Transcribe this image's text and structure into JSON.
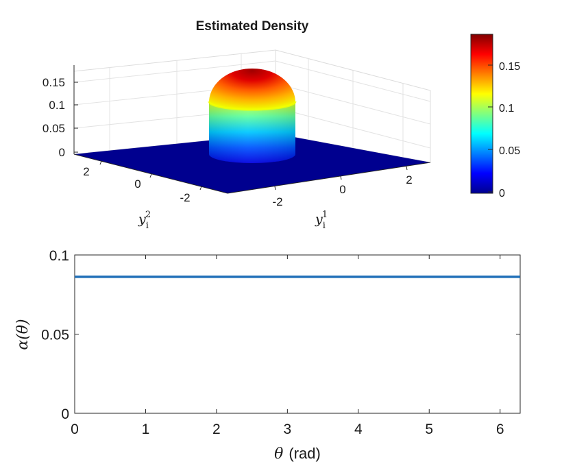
{
  "chart_data": [
    {
      "type": "surface3d",
      "title": "Estimated Density",
      "x_axis": {
        "label_base": "y",
        "label_sub": "i",
        "label_sup": "1",
        "ticks": [
          -2,
          0,
          2
        ],
        "tick_labels": [
          "-2",
          "0",
          "2"
        ],
        "range": [
          -3.2,
          3.2
        ]
      },
      "y_axis": {
        "label_base": "y",
        "label_sub": "i",
        "label_sup": "2",
        "ticks": [
          -2,
          0,
          2
        ],
        "tick_labels": [
          "-2",
          "0",
          "2"
        ],
        "range": [
          -3.2,
          3.2
        ]
      },
      "z_axis": {
        "label": "",
        "ticks": [
          0,
          0.05,
          0.1,
          0.15
        ],
        "tick_labels": [
          "0",
          "0.05",
          "0.1",
          "0.15"
        ],
        "range": [
          0,
          0.18
        ]
      },
      "surface": {
        "shape": "cylinder-with-dome",
        "radius": 1.0,
        "cylinder_height": 0.1,
        "peak": 0.18,
        "floor": 0
      },
      "colorbar": {
        "colormap": "jet",
        "range": [
          0,
          0.183
        ],
        "ticks": [
          0,
          0.05,
          0.1,
          0.15
        ],
        "tick_labels": [
          "0",
          "0.05",
          "0.1",
          "0.15"
        ]
      },
      "grid": true
    },
    {
      "type": "line",
      "title": "",
      "xlabel_symbol": "θ",
      "xlabel_unit": "(rad)",
      "ylabel_symbol": "α",
      "ylabel_arg": "(θ)",
      "x_ticks": [
        0,
        1,
        2,
        3,
        4,
        5,
        6
      ],
      "x_tick_labels": [
        "0",
        "1",
        "2",
        "3",
        "4",
        "5",
        "6"
      ],
      "y_ticks": [
        0,
        0.05,
        0.1
      ],
      "y_tick_labels": [
        "0",
        "0.05",
        "0.1"
      ],
      "xlim": [
        0,
        6.2832
      ],
      "ylim": [
        0,
        0.1
      ],
      "grid": false,
      "series": [
        {
          "name": "alpha",
          "color": "#1f6fb8",
          "x": [
            0,
            6.2832
          ],
          "y": [
            0.0862,
            0.0862
          ]
        }
      ]
    }
  ]
}
